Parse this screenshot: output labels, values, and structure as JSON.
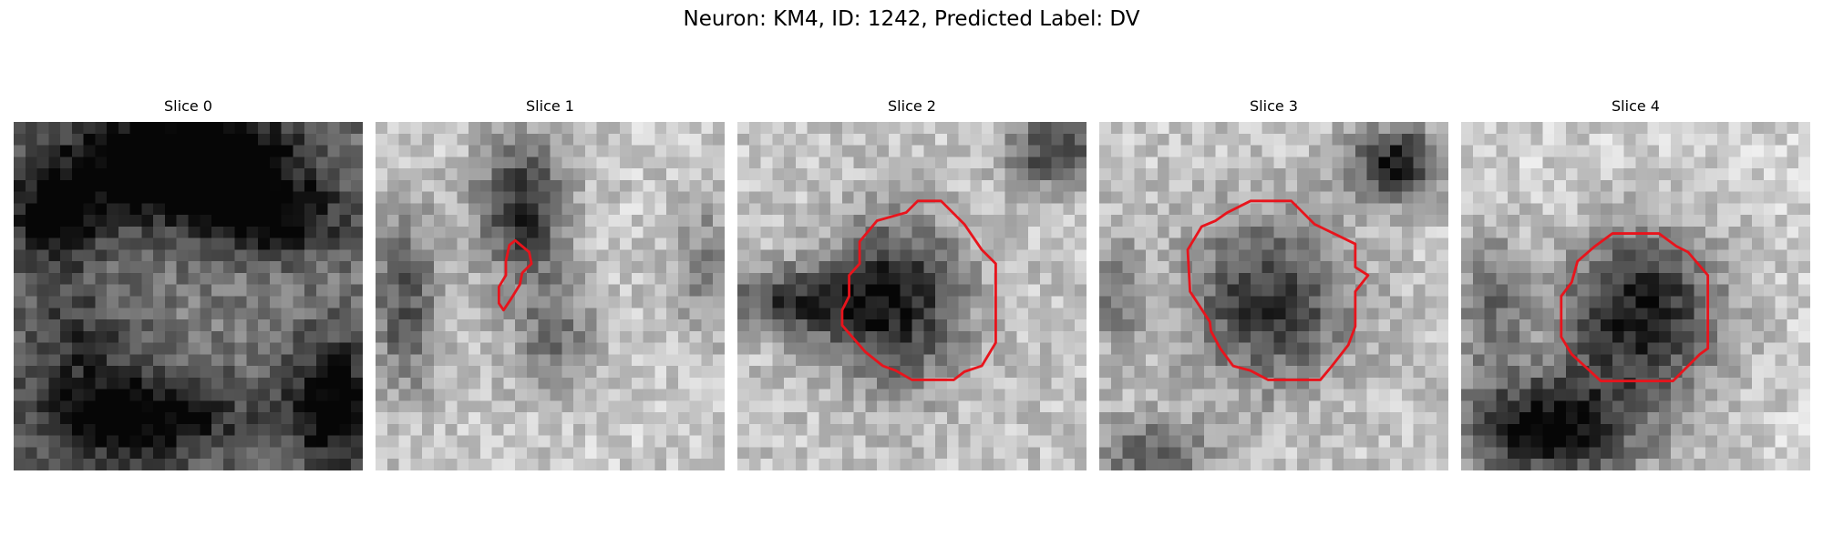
{
  "title": "Neuron: KM4, ID: 1242, Predicted Label: DV",
  "grid_size": 30,
  "outline_color": "#e8141c",
  "panels": [
    {
      "label": "Slice 0",
      "has_outline": false,
      "blobs": [
        {
          "cx": 14,
          "cy": 3,
          "rx": 10,
          "ry": 5,
          "dark": 0.85
        },
        {
          "cx": 3,
          "cy": 8,
          "rx": 4,
          "ry": 4,
          "dark": 0.55
        },
        {
          "cx": 22,
          "cy": 8,
          "rx": 6,
          "ry": 3,
          "dark": 0.45
        },
        {
          "cx": 10,
          "cy": 25,
          "rx": 9,
          "ry": 4,
          "dark": 0.6
        },
        {
          "cx": 27,
          "cy": 24,
          "rx": 4,
          "ry": 6,
          "dark": 0.55
        },
        {
          "cx": 5,
          "cy": 18,
          "rx": 5,
          "ry": 4,
          "dark": 0.3
        }
      ],
      "base": 0.52
    },
    {
      "label": "Slice 1",
      "has_outline": true,
      "blobs": [
        {
          "cx": 12,
          "cy": 7,
          "rx": 4,
          "ry": 6,
          "dark": 0.65
        },
        {
          "cx": 2,
          "cy": 15,
          "rx": 3,
          "ry": 8,
          "dark": 0.5
        },
        {
          "cx": 15,
          "cy": 18,
          "rx": 4,
          "ry": 5,
          "dark": 0.35
        },
        {
          "cx": 28,
          "cy": 12,
          "rx": 3,
          "ry": 6,
          "dark": 0.3
        }
      ],
      "base": 0.2
    },
    {
      "label": "Slice 2",
      "has_outline": true,
      "blobs": [
        {
          "cx": 13,
          "cy": 15,
          "rx": 6,
          "ry": 7,
          "dark": 0.7
        },
        {
          "cx": 4,
          "cy": 15,
          "rx": 6,
          "ry": 3,
          "dark": 0.55
        },
        {
          "cx": 27,
          "cy": 2,
          "rx": 4,
          "ry": 3,
          "dark": 0.6
        }
      ],
      "base": 0.22
    },
    {
      "label": "Slice 3",
      "has_outline": true,
      "blobs": [
        {
          "cx": 14,
          "cy": 15,
          "rx": 7,
          "ry": 7,
          "dark": 0.6
        },
        {
          "cx": 25,
          "cy": 3,
          "rx": 4,
          "ry": 3,
          "dark": 0.7
        },
        {
          "cx": 4,
          "cy": 28,
          "rx": 5,
          "ry": 3,
          "dark": 0.45
        },
        {
          "cx": 1,
          "cy": 14,
          "rx": 2,
          "ry": 5,
          "dark": 0.35
        }
      ],
      "base": 0.22
    },
    {
      "label": "Slice 4",
      "has_outline": true,
      "blobs": [
        {
          "cx": 15,
          "cy": 16,
          "rx": 7,
          "ry": 7,
          "dark": 0.75
        },
        {
          "cx": 7,
          "cy": 26,
          "rx": 8,
          "ry": 5,
          "dark": 0.8
        },
        {
          "cx": 2,
          "cy": 15,
          "rx": 3,
          "ry": 6,
          "dark": 0.4
        }
      ],
      "base": 0.18
    }
  ]
}
